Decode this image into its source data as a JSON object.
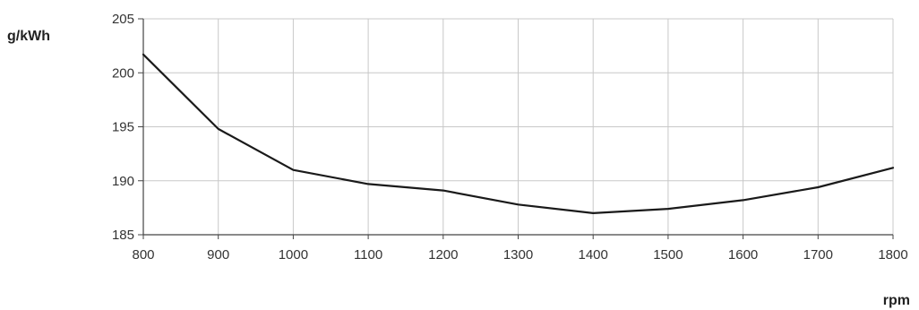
{
  "chart_data": {
    "type": "line",
    "title": "",
    "xlabel": "rpm",
    "ylabel": "g/kWh",
    "xlim": [
      800,
      1800
    ],
    "ylim": [
      185,
      205
    ],
    "xticks": [
      800,
      900,
      1000,
      1100,
      1200,
      1300,
      1400,
      1500,
      1600,
      1700,
      1800
    ],
    "yticks": [
      185,
      190,
      195,
      200,
      205
    ],
    "grid": true,
    "legend": "none",
    "series": [
      {
        "color": "#1a1a1a",
        "x": [
          800,
          900,
          1000,
          1100,
          1200,
          1300,
          1400,
          1500,
          1600,
          1700,
          1800
        ],
        "y": [
          201.7,
          194.8,
          191.0,
          189.7,
          189.1,
          187.8,
          187.0,
          187.4,
          188.2,
          189.4,
          191.2
        ]
      }
    ],
    "colors": {
      "grid": "#c8c8c8",
      "axis": "#444444",
      "line": "#1a1a1a"
    }
  }
}
